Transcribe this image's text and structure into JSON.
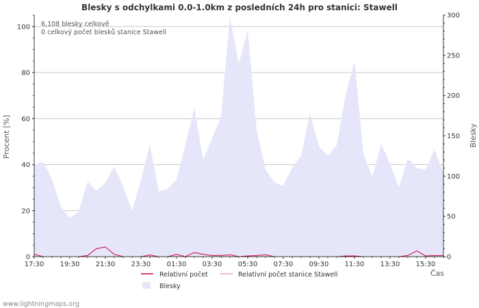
{
  "chart_data": {
    "type": "area",
    "title": "Blesky s odchylkami 0.0-1.0km z posledních 24h pro stanici: Stawell",
    "ylabel_left": "Procent   [%]",
    "ylabel_right": "Blesky",
    "xlabel": "Čas",
    "ylim_left": [
      0,
      105
    ],
    "ylim_right": [
      0,
      300
    ],
    "yticks_left": [
      0,
      20,
      40,
      60,
      80,
      100
    ],
    "yticks_right": [
      0,
      50,
      100,
      150,
      200,
      250,
      300
    ],
    "x_tick_labels": [
      "17:30",
      "19:30",
      "21:30",
      "23:30",
      "01:30",
      "03:30",
      "05:30",
      "07:30",
      "09:30",
      "11:30",
      "13:30",
      "15:30"
    ],
    "x_tick_positions": [
      0,
      4,
      8,
      12,
      16,
      20,
      24,
      28,
      32,
      36,
      40,
      44
    ],
    "x_count": 47,
    "annotations": [
      "6,108 blesky celkově",
      "0 celkový počet blesků stanice Stawell"
    ],
    "series": [
      {
        "name": "Blesky",
        "axis": "right",
        "color": "#e6e6fa",
        "values": [
          114,
          118,
          96,
          62,
          48,
          56,
          93,
          82,
          92,
          112,
          87,
          57,
          95,
          139,
          81,
          84,
          96,
          139,
          185,
          120,
          147,
          174,
          298,
          240,
          281,
          158,
          108,
          92,
          88,
          111,
          125,
          178,
          137,
          125,
          138,
          200,
          243,
          129,
          99,
          140,
          115,
          86,
          122,
          110,
          108,
          133,
          104
        ]
      },
      {
        "name": "Relativní počet",
        "axis": "left",
        "color": "#cc0033",
        "values": [
          1.0,
          0.0,
          0.0,
          0.0,
          0.0,
          0.0,
          0.5,
          3.5,
          4.2,
          1.0,
          0.0,
          0.0,
          0.0,
          0.7,
          0.0,
          0.0,
          1.0,
          0.0,
          1.8,
          1.0,
          0.5,
          0.5,
          0.8,
          0.0,
          0.3,
          0.5,
          0.8,
          0.0,
          0.0,
          0.0,
          0.0,
          0.0,
          0.0,
          0.0,
          0.0,
          0.3,
          0.3,
          0.0,
          0.0,
          0.0,
          0.0,
          0.0,
          0.5,
          2.5,
          0.3,
          0.5,
          0.5
        ]
      },
      {
        "name": "Relativní počet stanice Stawell",
        "axis": "left",
        "color": "#f4a0b0",
        "values": [
          0,
          0,
          0,
          0,
          0,
          0,
          0,
          0,
          0,
          0,
          0,
          0,
          0,
          0,
          0,
          0,
          0,
          0,
          0,
          0,
          0,
          0,
          0,
          0,
          0,
          0,
          0,
          0,
          0,
          0,
          0,
          0,
          0,
          0,
          0,
          0,
          0,
          0,
          0,
          0,
          0,
          0,
          0,
          0,
          0,
          0,
          0
        ]
      }
    ]
  },
  "legend": {
    "relative_label": "Relativní počet",
    "relative_station_label": "Relativní počet stanice Stawell",
    "strikes_label": "Blesky"
  },
  "colors": {
    "grid": "#c8c8c8",
    "axis": "#333333",
    "area": "#e6e6fa",
    "relative": "#cc0033",
    "relative_station": "#f4a0b0"
  },
  "footer": {
    "credit": "www.lightningmaps.org"
  }
}
